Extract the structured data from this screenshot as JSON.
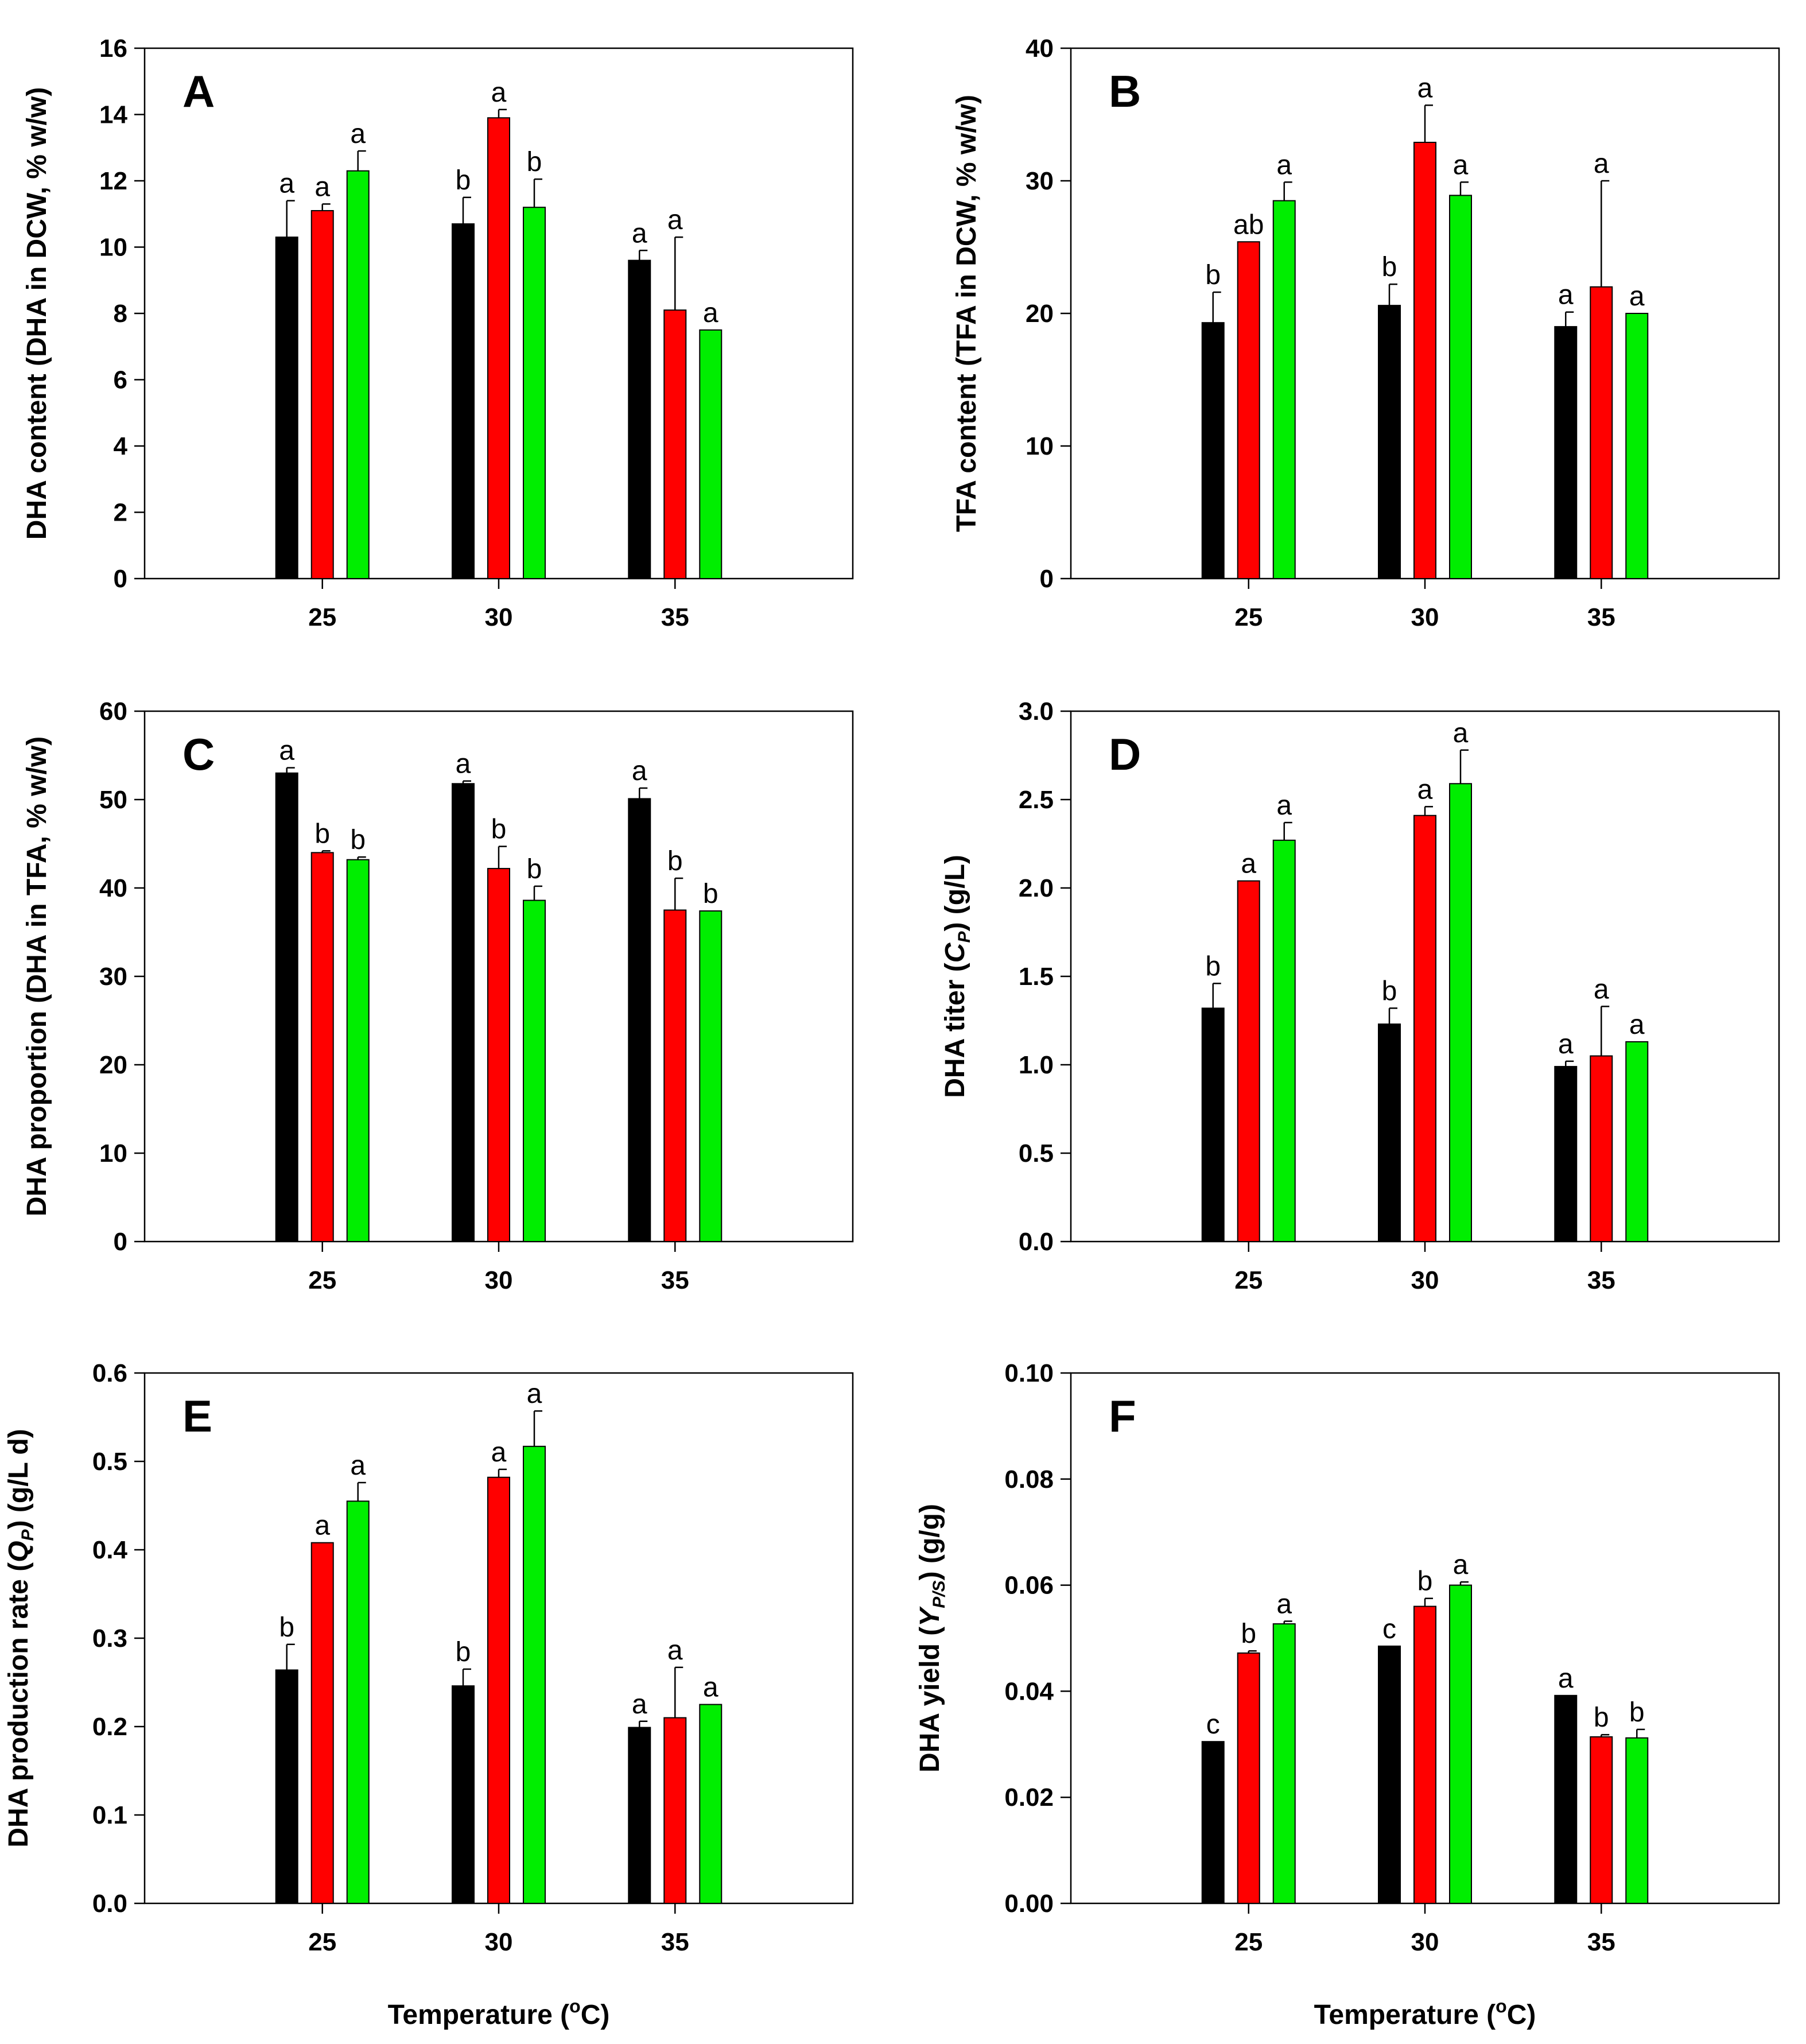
{
  "colors": {
    "series1": "#000000",
    "series2": "#ff0000",
    "series3": "#00ee00"
  },
  "panels": [
    {
      "letter": "A",
      "ylabel": "DHA content (DHA in DCW, % w/w)",
      "yticks": [
        "0",
        "2",
        "4",
        "6",
        "8",
        "10",
        "12",
        "14",
        "16"
      ],
      "xlabel": "",
      "chart_data": {
        "type": "bar",
        "categories": [
          "25",
          "30",
          "35"
        ],
        "ylim": [
          0,
          16
        ],
        "series": [
          {
            "values": [
              10.3,
              10.7,
              9.6
            ],
            "errors": [
              1.1,
              0.8,
              0.3
            ],
            "letters": [
              "a",
              "b",
              "a"
            ]
          },
          {
            "values": [
              11.1,
              13.9,
              8.1
            ],
            "errors": [
              0.2,
              0.25,
              2.2
            ],
            "letters": [
              "a",
              "a",
              "a"
            ]
          },
          {
            "values": [
              12.3,
              11.2,
              7.5
            ],
            "errors": [
              0.6,
              0.85,
              0.0
            ],
            "letters": [
              "a",
              "b",
              "a"
            ]
          }
        ]
      }
    },
    {
      "letter": "B",
      "ylabel": "TFA content (TFA in DCW, % w/w)",
      "yticks": [
        "0",
        "10",
        "20",
        "30",
        "40"
      ],
      "xlabel": "",
      "chart_data": {
        "type": "bar",
        "categories": [
          "25",
          "30",
          "35"
        ],
        "ylim": [
          0,
          40
        ],
        "series": [
          {
            "values": [
              19.3,
              20.6,
              19.0
            ],
            "errors": [
              2.3,
              1.6,
              1.1
            ],
            "letters": [
              "b",
              "b",
              "a"
            ]
          },
          {
            "values": [
              25.4,
              32.9,
              22.0
            ],
            "errors": [
              0.0,
              2.8,
              8.0
            ],
            "letters": [
              "ab",
              "a",
              "a"
            ]
          },
          {
            "values": [
              28.5,
              28.9,
              20.0
            ],
            "errors": [
              1.4,
              1.0,
              0.0
            ],
            "letters": [
              "a",
              "a",
              "a"
            ]
          }
        ]
      }
    },
    {
      "letter": "C",
      "ylabel": "DHA proportion (DHA in TFA, % w/w)",
      "yticks": [
        "0",
        "10",
        "20",
        "30",
        "40",
        "50",
        "60"
      ],
      "xlabel": "",
      "chart_data": {
        "type": "bar",
        "categories": [
          "25",
          "30",
          "35"
        ],
        "ylim": [
          0,
          60
        ],
        "series": [
          {
            "values": [
              53.0,
              51.8,
              50.1
            ],
            "errors": [
              0.6,
              0.3,
              1.2
            ],
            "letters": [
              "a",
              "a",
              "a"
            ]
          },
          {
            "values": [
              44.0,
              42.2,
              37.5
            ],
            "errors": [
              0.2,
              2.5,
              3.6
            ],
            "letters": [
              "b",
              "b",
              "b"
            ]
          },
          {
            "values": [
              43.2,
              38.6,
              37.4
            ],
            "errors": [
              0.3,
              1.6,
              0.0
            ],
            "letters": [
              "b",
              "b",
              "b"
            ]
          }
        ]
      }
    },
    {
      "letter": "D",
      "ylabel": "DHA titer (",
      "ylabel_var": "C",
      "ylabel_sub": "P",
      "ylabel_tail": ") (g/L)",
      "yticks": [
        "0.0",
        "0.5",
        "1.0",
        "1.5",
        "2.0",
        "2.5",
        "3.0"
      ],
      "xlabel": "",
      "chart_data": {
        "type": "bar",
        "categories": [
          "25",
          "30",
          "35"
        ],
        "ylim": [
          0,
          3.0
        ],
        "series": [
          {
            "values": [
              1.32,
              1.23,
              0.99
            ],
            "errors": [
              0.14,
              0.09,
              0.03
            ],
            "letters": [
              "b",
              "b",
              "a"
            ]
          },
          {
            "values": [
              2.04,
              2.41,
              1.05
            ],
            "errors": [
              0.0,
              0.05,
              0.28
            ],
            "letters": [
              "a",
              "a",
              "a"
            ]
          },
          {
            "values": [
              2.27,
              2.59,
              1.13
            ],
            "errors": [
              0.1,
              0.19,
              0.0
            ],
            "letters": [
              "a",
              "a",
              "a"
            ]
          }
        ]
      }
    },
    {
      "letter": "E",
      "ylabel": "DHA production rate (",
      "ylabel_var": "Q",
      "ylabel_sub": "P",
      "ylabel_tail": ") (g/L d)",
      "yticks": [
        "0.0",
        "0.1",
        "0.2",
        "0.3",
        "0.4",
        "0.5",
        "0.6"
      ],
      "xlabel": "Temperature (",
      "xlabel_sup": "o",
      "xlabel_tail": "C)",
      "chart_data": {
        "type": "bar",
        "categories": [
          "25",
          "30",
          "35"
        ],
        "ylim": [
          0,
          0.6
        ],
        "series": [
          {
            "values": [
              0.264,
              0.246,
              0.199
            ],
            "errors": [
              0.029,
              0.019,
              0.007
            ],
            "letters": [
              "b",
              "b",
              "a"
            ]
          },
          {
            "values": [
              0.408,
              0.482,
              0.21
            ],
            "errors": [
              0.0,
              0.009,
              0.057
            ],
            "letters": [
              "a",
              "a",
              "a"
            ]
          },
          {
            "values": [
              0.455,
              0.517,
              0.225
            ],
            "errors": [
              0.021,
              0.04,
              0.0
            ],
            "letters": [
              "a",
              "a",
              "a"
            ]
          }
        ]
      }
    },
    {
      "letter": "F",
      "ylabel": "DHA yield (",
      "ylabel_var": "Y",
      "ylabel_sub": "P/S",
      "ylabel_tail": ") (g/g)",
      "yticks": [
        "0.00",
        "0.02",
        "0.04",
        "0.06",
        "0.08",
        "0.10"
      ],
      "xlabel": "Temperature (",
      "xlabel_sup": "o",
      "xlabel_tail": "C)",
      "chart_data": {
        "type": "bar",
        "categories": [
          "25",
          "30",
          "35"
        ],
        "ylim": [
          0,
          0.1
        ],
        "series": [
          {
            "values": [
              0.0305,
              0.0485,
              0.0392
            ],
            "errors": [
              0.0,
              0.0,
              0.0
            ],
            "letters": [
              "c",
              "c",
              "a"
            ]
          },
          {
            "values": [
              0.0472,
              0.056,
              0.0314
            ],
            "errors": [
              0.0004,
              0.0015,
              0.0004
            ],
            "letters": [
              "b",
              "b",
              "b"
            ]
          },
          {
            "values": [
              0.0527,
              0.06,
              0.0312
            ],
            "errors": [
              0.0005,
              0.0006,
              0.0016
            ],
            "letters": [
              "a",
              "a",
              "b"
            ]
          }
        ]
      }
    }
  ]
}
